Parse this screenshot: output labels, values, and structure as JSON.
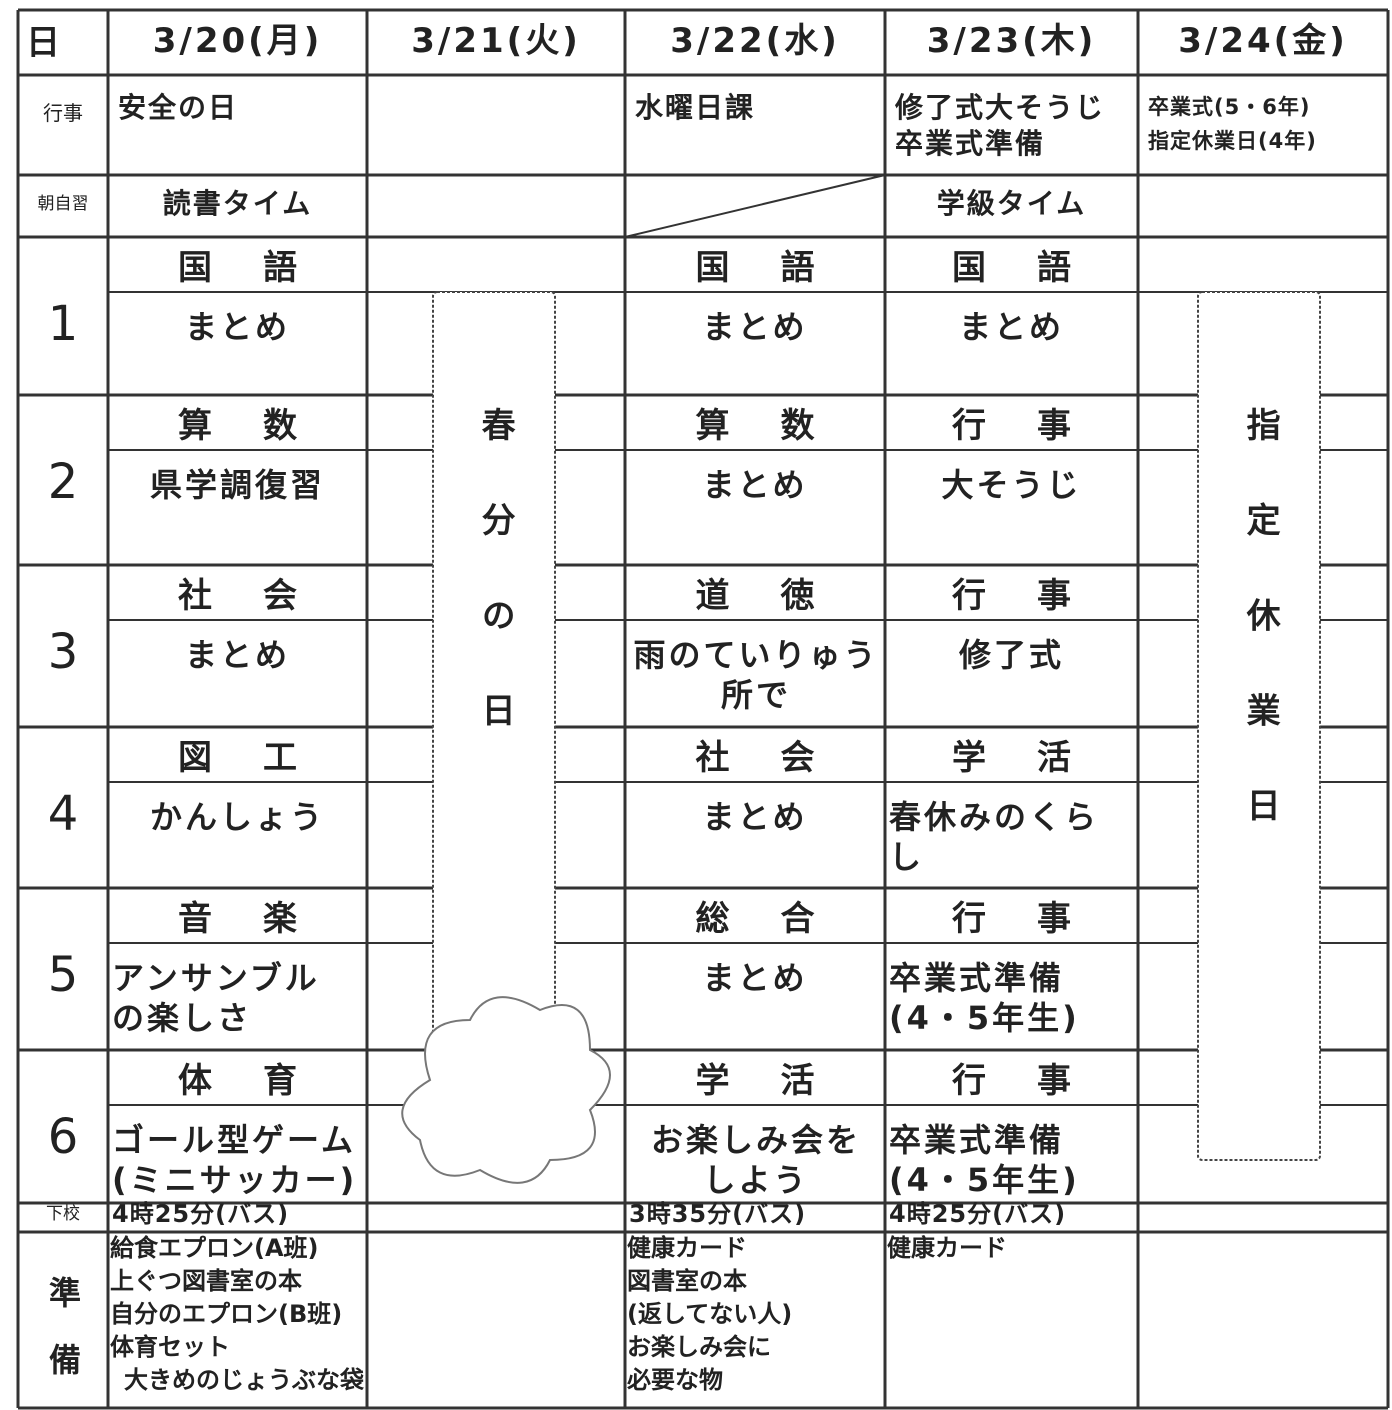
{
  "row_labels": {
    "date": "日",
    "event": "行事",
    "morning": "朝自習",
    "periods": [
      1,
      2,
      3,
      4,
      5,
      6
    ],
    "dismissal": "下校",
    "prep": "準備"
  },
  "days": [
    {
      "date": "3/20(月)",
      "event": [
        "安全の日"
      ],
      "morning": "読書タイム",
      "periods": [
        {
          "subject": "国語",
          "content": [
            "まとめ"
          ]
        },
        {
          "subject": "算数",
          "content": [
            "県学調復習"
          ]
        },
        {
          "subject": "社会",
          "content": [
            "まとめ"
          ]
        },
        {
          "subject": "図工",
          "content": [
            "かんしょう"
          ]
        },
        {
          "subject": "音楽",
          "content": [
            "アンサンブル",
            "の楽しさ"
          ]
        },
        {
          "subject": "体育",
          "content": [
            "ゴール型ゲーム",
            "(ミニサッカー)"
          ]
        }
      ],
      "dismissal": "4時25分(バス)",
      "prep": [
        "給食エプロン(A班)",
        "上ぐつ図書室の本",
        "自分のエプロン(B班)",
        "体育セット",
        "大きめのじょうぶな袋"
      ]
    },
    {
      "date": "3/21(火)",
      "holiday": "春分の日"
    },
    {
      "date": "3/22(水)",
      "event": [
        "水曜日課"
      ],
      "periods": [
        {
          "subject": "国語",
          "content": [
            "まとめ"
          ]
        },
        {
          "subject": "算数",
          "content": [
            "まとめ"
          ]
        },
        {
          "subject": "道徳",
          "content": [
            "雨のていりゅう",
            "所で"
          ]
        },
        {
          "subject": "社会",
          "content": [
            "まとめ"
          ]
        },
        {
          "subject": "総合",
          "content": [
            "まとめ"
          ]
        },
        {
          "subject": "学活",
          "content": [
            "お楽しみ会を",
            "しよう"
          ]
        }
      ],
      "dismissal": "3時35分(バス)",
      "prep": [
        "健康カード",
        "図書室の本",
        "(返してない人)",
        "お楽しみ会に",
        "必要な物"
      ]
    },
    {
      "date": "3/23(木)",
      "event": [
        "修了式大そうじ",
        "卒業式準備"
      ],
      "morning": "学級タイム",
      "periods": [
        {
          "subject": "国語",
          "content": [
            "まとめ"
          ]
        },
        {
          "subject": "行事",
          "content": [
            "大そうじ"
          ]
        },
        {
          "subject": "行事",
          "content": [
            "修了式"
          ]
        },
        {
          "subject": "学活",
          "content": [
            "春休みのくら",
            "し"
          ]
        },
        {
          "subject": "行事",
          "content": [
            "卒業式準備",
            "(4・5年生)"
          ]
        },
        {
          "subject": "行事",
          "content": [
            "卒業式準備",
            "(4・5年生)"
          ]
        }
      ],
      "dismissal": "4時25分(バス)",
      "prep": [
        "健康カード"
      ]
    },
    {
      "date": "3/24(金)",
      "event": [
        "卒業式(5・6年)",
        "指定休業日(4年)"
      ],
      "holiday": "指定休業日"
    }
  ]
}
